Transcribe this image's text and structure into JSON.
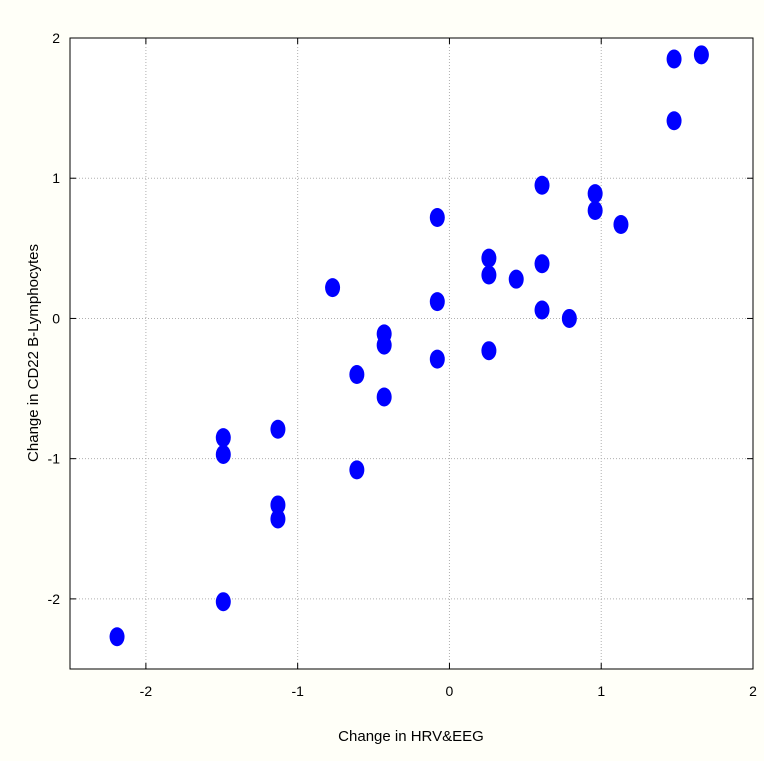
{
  "chart_data": {
    "type": "scatter",
    "title": "",
    "xlabel": "Change in HRV&EEG",
    "ylabel": "Change in CD22 B-Lymphocytes",
    "xlim": [
      -2.5,
      2
    ],
    "ylim": [
      -2.5,
      2
    ],
    "xticks": [
      -2,
      -1,
      0,
      1,
      2
    ],
    "yticks": [
      -2,
      -1,
      0,
      1,
      2
    ],
    "xtick_labels": [
      "-2",
      "-1",
      "0",
      "1",
      "2"
    ],
    "ytick_labels": [
      "-2",
      "-1",
      "0",
      "1",
      "2"
    ],
    "grid": true,
    "marker_color": "#0000ff",
    "background_color": "#fffff8",
    "points": [
      {
        "x": -2.19,
        "y": -2.27
      },
      {
        "x": -1.49,
        "y": -2.02
      },
      {
        "x": -1.49,
        "y": -0.97
      },
      {
        "x": -1.49,
        "y": -0.85
      },
      {
        "x": -1.13,
        "y": -1.43
      },
      {
        "x": -1.13,
        "y": -1.33
      },
      {
        "x": -1.13,
        "y": -0.79
      },
      {
        "x": -0.77,
        "y": 0.22
      },
      {
        "x": -0.61,
        "y": -1.08
      },
      {
        "x": -0.61,
        "y": -0.4
      },
      {
        "x": -0.43,
        "y": -0.56
      },
      {
        "x": -0.43,
        "y": -0.19
      },
      {
        "x": -0.43,
        "y": -0.11
      },
      {
        "x": -0.08,
        "y": -0.29
      },
      {
        "x": -0.08,
        "y": 0.12
      },
      {
        "x": -0.08,
        "y": 0.72
      },
      {
        "x": 0.26,
        "y": -0.23
      },
      {
        "x": 0.26,
        "y": 0.31
      },
      {
        "x": 0.26,
        "y": 0.43
      },
      {
        "x": 0.44,
        "y": 0.28
      },
      {
        "x": 0.61,
        "y": 0.06
      },
      {
        "x": 0.61,
        "y": 0.39
      },
      {
        "x": 0.61,
        "y": 0.95
      },
      {
        "x": 0.79,
        "y": 0.0
      },
      {
        "x": 0.96,
        "y": 0.77
      },
      {
        "x": 0.96,
        "y": 0.89
      },
      {
        "x": 1.13,
        "y": 0.67
      },
      {
        "x": 1.48,
        "y": 1.41
      },
      {
        "x": 1.48,
        "y": 1.85
      },
      {
        "x": 1.66,
        "y": 1.88
      }
    ]
  }
}
